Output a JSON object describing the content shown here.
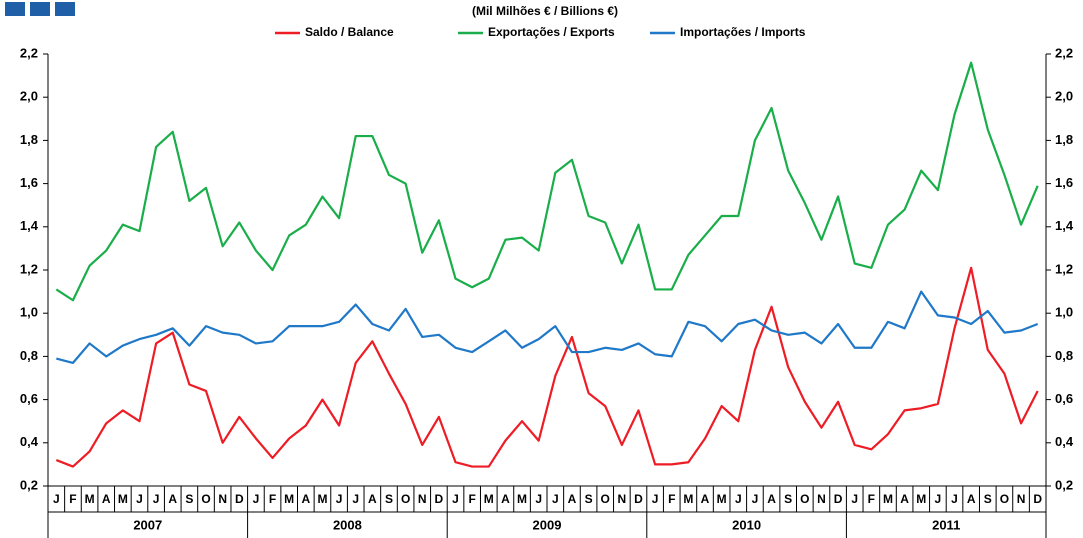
{
  "chart_data": {
    "type": "line",
    "title": "(Mil Milhões € / Billions €)",
    "categories": [
      "J",
      "F",
      "M",
      "A",
      "M",
      "J",
      "J",
      "A",
      "S",
      "O",
      "N",
      "D",
      "J",
      "F",
      "M",
      "A",
      "M",
      "J",
      "J",
      "A",
      "S",
      "O",
      "N",
      "D",
      "J",
      "F",
      "M",
      "A",
      "M",
      "J",
      "J",
      "A",
      "S",
      "O",
      "N",
      "D",
      "J",
      "F",
      "M",
      "A",
      "M",
      "J",
      "J",
      "A",
      "S",
      "O",
      "N",
      "D",
      "J",
      "F",
      "M",
      "A",
      "M",
      "J",
      "J",
      "A",
      "S",
      "O",
      "N",
      "D"
    ],
    "groups": [
      "2007",
      "2008",
      "2009",
      "2010",
      "2011"
    ],
    "series": [
      {
        "name": "Saldo / Balance",
        "color": "#ee1c25",
        "values": [
          0.32,
          0.29,
          0.36,
          0.49,
          0.55,
          0.5,
          0.86,
          0.91,
          0.67,
          0.64,
          0.4,
          0.52,
          0.42,
          0.33,
          0.42,
          0.48,
          0.6,
          0.48,
          0.77,
          0.87,
          0.72,
          0.58,
          0.39,
          0.52,
          0.31,
          0.29,
          0.29,
          0.41,
          0.5,
          0.41,
          0.71,
          0.89,
          0.63,
          0.57,
          0.39,
          0.55,
          0.3,
          0.3,
          0.31,
          0.42,
          0.57,
          0.5,
          0.83,
          1.03,
          0.75,
          0.59,
          0.47,
          0.59,
          0.39,
          0.37,
          0.44,
          0.55,
          0.56,
          0.58,
          0.93,
          1.21,
          0.83,
          0.72,
          0.49,
          0.64
        ]
      },
      {
        "name": "Exportações / Exports",
        "color": "#1aae4a",
        "values": [
          1.11,
          1.06,
          1.22,
          1.29,
          1.41,
          1.38,
          1.77,
          1.84,
          1.52,
          1.58,
          1.31,
          1.42,
          1.29,
          1.2,
          1.36,
          1.41,
          1.54,
          1.44,
          1.82,
          1.82,
          1.64,
          1.6,
          1.28,
          1.43,
          1.16,
          1.12,
          1.16,
          1.34,
          1.35,
          1.29,
          1.65,
          1.71,
          1.45,
          1.42,
          1.23,
          1.41,
          1.11,
          1.11,
          1.27,
          1.36,
          1.45,
          1.45,
          1.8,
          1.95,
          1.66,
          1.51,
          1.34,
          1.54,
          1.23,
          1.21,
          1.41,
          1.48,
          1.66,
          1.57,
          1.92,
          2.16,
          1.85,
          1.64,
          1.41,
          1.59
        ]
      },
      {
        "name": "Importações / Imports",
        "color": "#1f78c8",
        "values": [
          0.79,
          0.77,
          0.86,
          0.8,
          0.85,
          0.88,
          0.9,
          0.93,
          0.85,
          0.94,
          0.91,
          0.9,
          0.86,
          0.87,
          0.94,
          0.94,
          0.94,
          0.96,
          1.04,
          0.95,
          0.92,
          1.02,
          0.89,
          0.9,
          0.84,
          0.82,
          0.87,
          0.92,
          0.84,
          0.88,
          0.94,
          0.82,
          0.82,
          0.84,
          0.83,
          0.86,
          0.81,
          0.8,
          0.96,
          0.94,
          0.87,
          0.95,
          0.97,
          0.92,
          0.9,
          0.91,
          0.86,
          0.95,
          0.84,
          0.84,
          0.96,
          0.93,
          1.1,
          0.99,
          0.98,
          0.95,
          1.01,
          0.91,
          0.92,
          0.95
        ]
      }
    ],
    "ylim": [
      0.2,
      2.2
    ],
    "yticks": [
      {
        "value": 0.2,
        "label": "0,2"
      },
      {
        "value": 0.4,
        "label": "0,4"
      },
      {
        "value": 0.6,
        "label": "0,6"
      },
      {
        "value": 0.8,
        "label": "0,8"
      },
      {
        "value": 1.0,
        "label": "1,0"
      },
      {
        "value": 1.2,
        "label": "1,2"
      },
      {
        "value": 1.4,
        "label": "1,4"
      },
      {
        "value": 1.6,
        "label": "1,6"
      },
      {
        "value": 1.8,
        "label": "1,8"
      },
      {
        "value": 2.0,
        "label": "2,0"
      },
      {
        "value": 2.2,
        "label": "2,2"
      }
    ],
    "y2lim": [
      0.2,
      2.2
    ],
    "y2ticks": [
      {
        "value": 0.2,
        "label": "0,2"
      },
      {
        "value": 0.4,
        "label": "0,4"
      },
      {
        "value": 0.6,
        "label": "0,6"
      },
      {
        "value": 0.8,
        "label": "0,8"
      },
      {
        "value": 1.0,
        "label": "1,0"
      },
      {
        "value": 1.2,
        "label": "1,2"
      },
      {
        "value": 1.4,
        "label": "1,4"
      },
      {
        "value": 1.6,
        "label": "1,6"
      },
      {
        "value": 1.8,
        "label": "1,8"
      },
      {
        "value": 2.0,
        "label": "2,0"
      },
      {
        "value": 2.2,
        "label": "2,2"
      }
    ],
    "grid": false
  }
}
